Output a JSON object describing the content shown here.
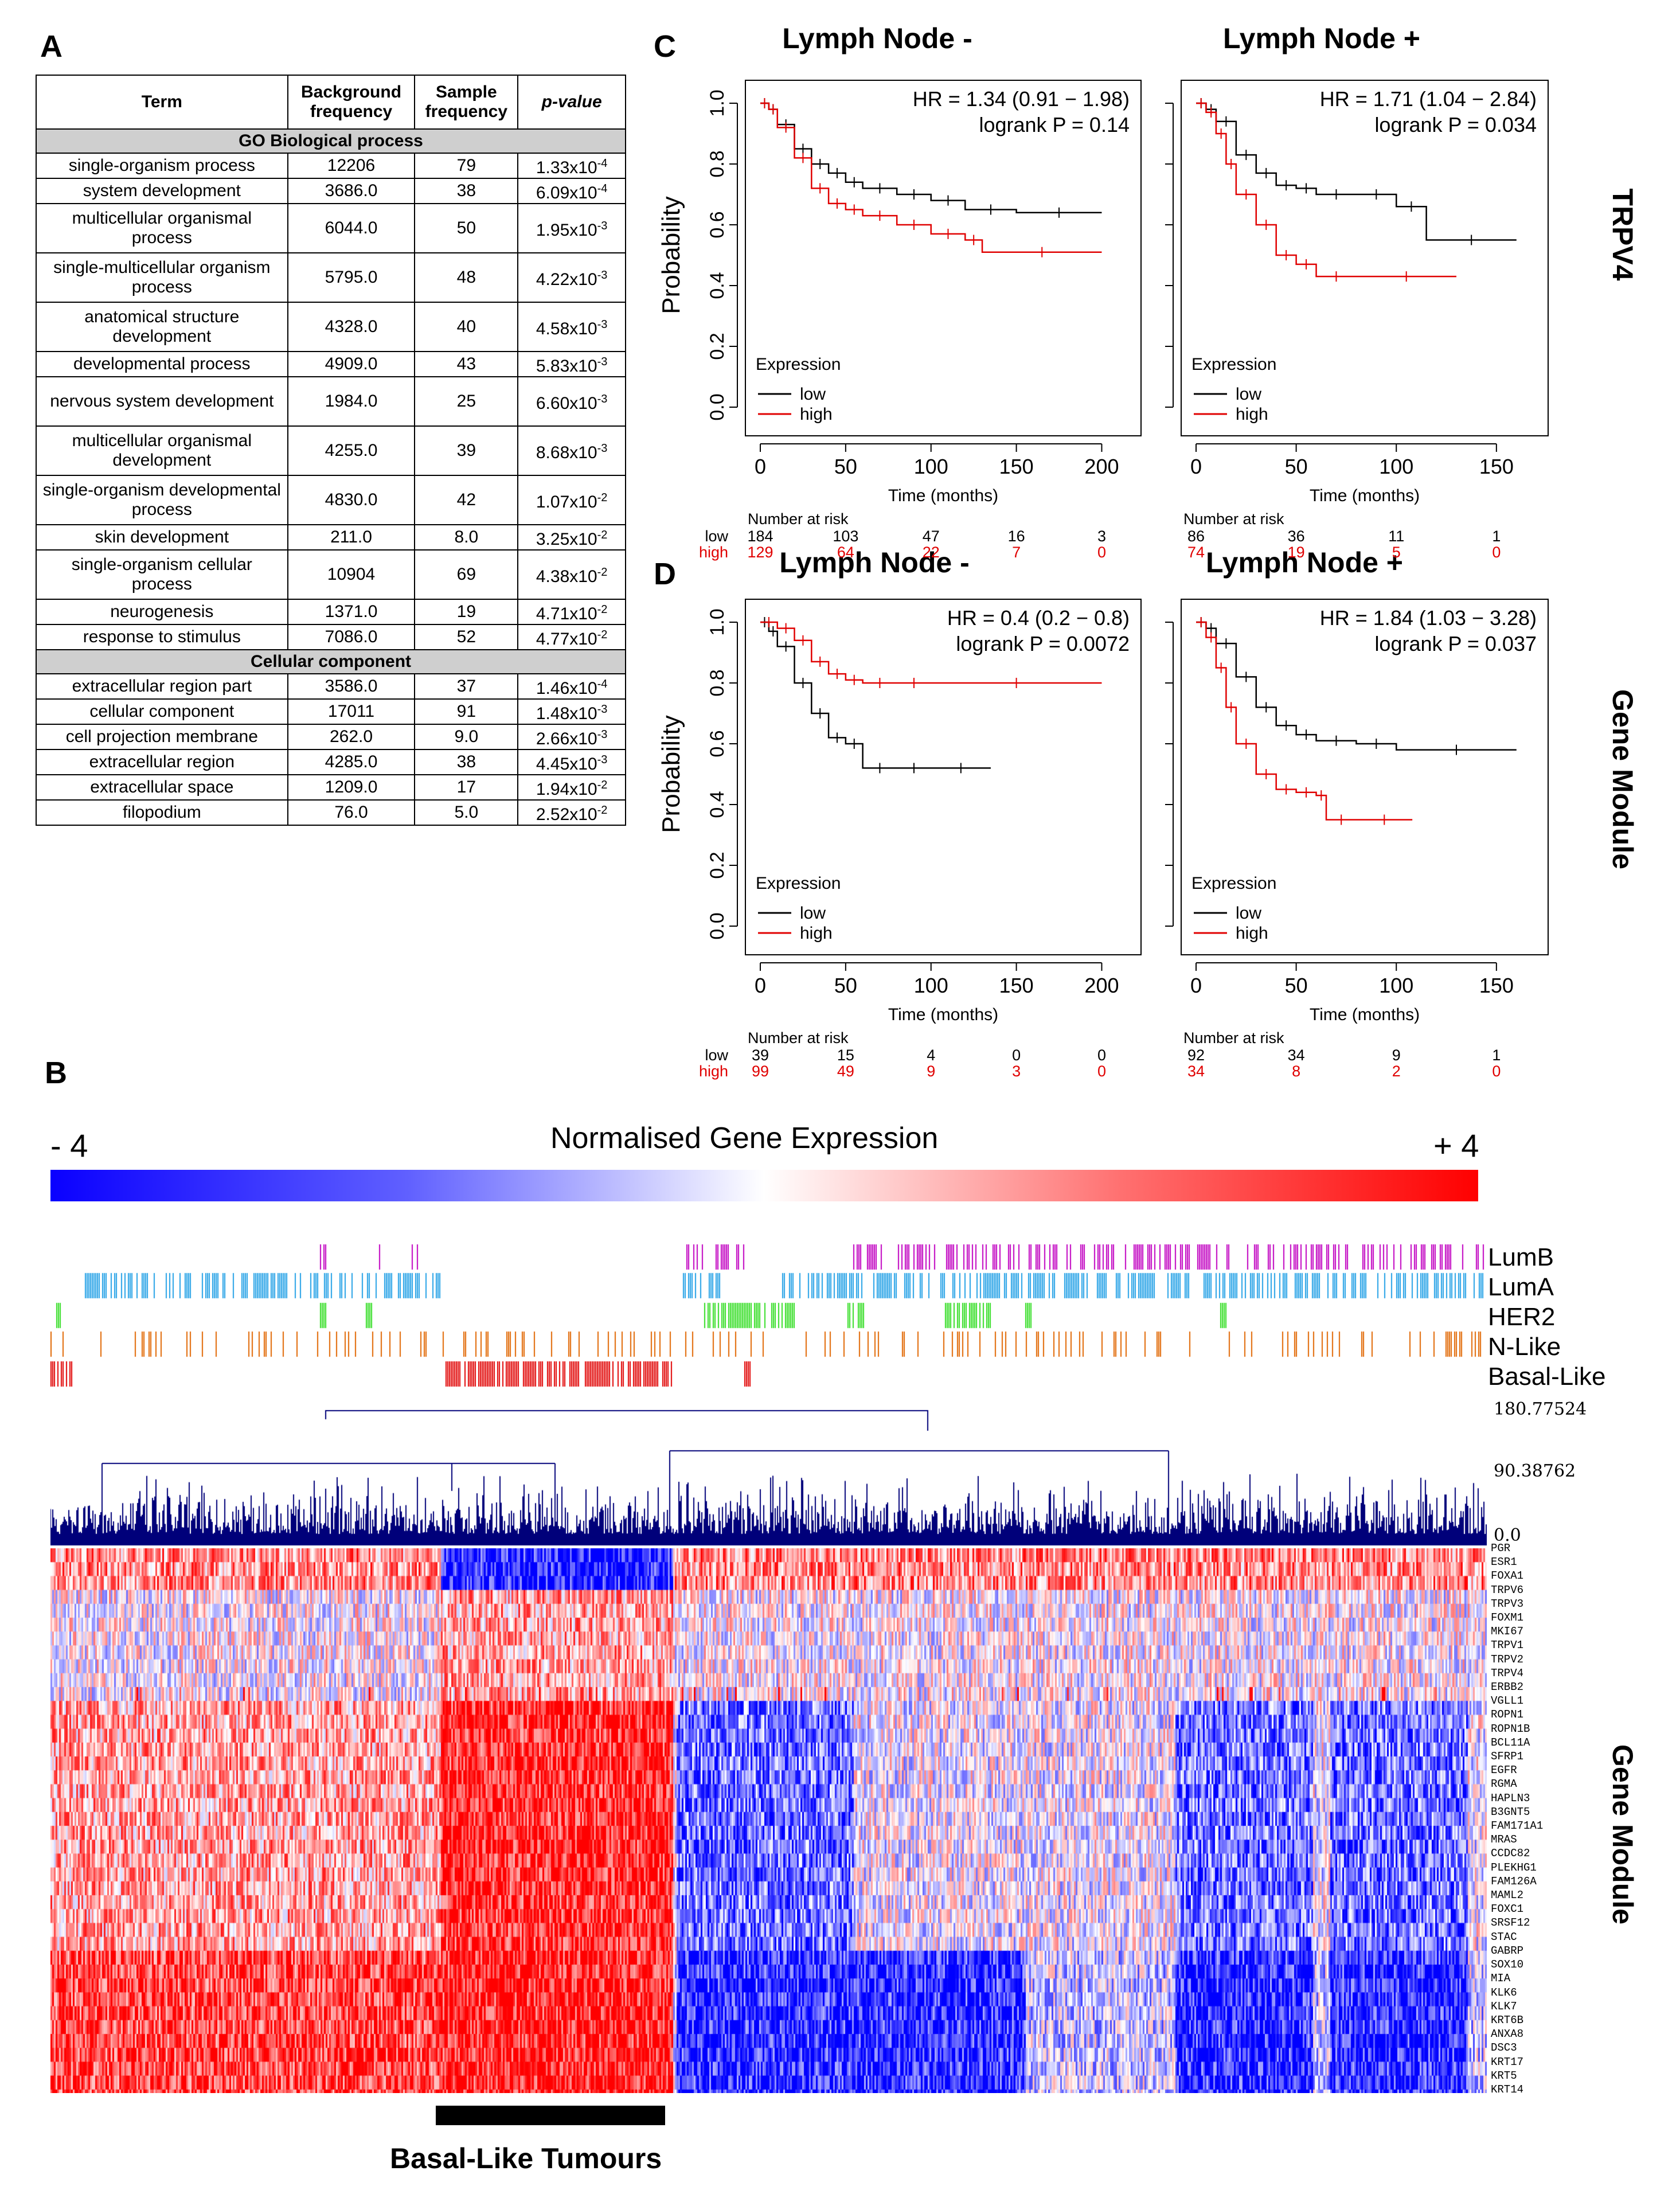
{
  "panels": {
    "A": "A",
    "B": "B",
    "C": "C",
    "D": "D"
  },
  "table": {
    "headers": [
      "Term",
      "Background frequency",
      "Sample frequency",
      "p-value"
    ],
    "sections": [
      {
        "title": "GO Biological process",
        "rows": [
          {
            "term": "single-organism process",
            "bg": "12206",
            "sample": "79",
            "p": "1.33x10",
            "exp": "-4",
            "tall": false
          },
          {
            "term": "system development",
            "bg": "3686.0",
            "sample": "38",
            "p": "6.09x10",
            "exp": "-4",
            "tall": false
          },
          {
            "term": "multicellular organismal process",
            "bg": "6044.0",
            "sample": "50",
            "p": "1.95x10",
            "exp": "-3",
            "tall": true
          },
          {
            "term": "single-multicellular organism process",
            "bg": "5795.0",
            "sample": "48",
            "p": "4.22x10",
            "exp": "-3",
            "tall": true
          },
          {
            "term": "anatomical structure development",
            "bg": "4328.0",
            "sample": "40",
            "p": "4.58x10",
            "exp": "-3",
            "tall": true
          },
          {
            "term": "developmental process",
            "bg": "4909.0",
            "sample": "43",
            "p": "5.83x10",
            "exp": "-3",
            "tall": false
          },
          {
            "term": "nervous system development",
            "bg": "1984.0",
            "sample": "25",
            "p": "6.60x10",
            "exp": "-3",
            "tall": true
          },
          {
            "term": "multicellular organismal development",
            "bg": "4255.0",
            "sample": "39",
            "p": "8.68x10",
            "exp": "-3",
            "tall": true
          },
          {
            "term": "single-organism developmental process",
            "bg": "4830.0",
            "sample": "42",
            "p": "1.07x10",
            "exp": "-2",
            "tall": true
          },
          {
            "term": "skin development",
            "bg": "211.0",
            "sample": "8.0",
            "p": "3.25x10",
            "exp": "-2",
            "tall": false
          },
          {
            "term": "single-organism cellular process",
            "bg": "10904",
            "sample": "69",
            "p": "4.38x10",
            "exp": "-2",
            "tall": true
          },
          {
            "term": "neurogenesis",
            "bg": "1371.0",
            "sample": "19",
            "p": "4.71x10",
            "exp": "-2",
            "tall": false
          },
          {
            "term": "response to stimulus",
            "bg": "7086.0",
            "sample": "52",
            "p": "4.77x10",
            "exp": "-2",
            "tall": false
          }
        ]
      },
      {
        "title": "Cellular component",
        "rows": [
          {
            "term": "extracellular region part",
            "bg": "3586.0",
            "sample": "37",
            "p": "1.46x10",
            "exp": "-4",
            "tall": false
          },
          {
            "term": "cellular component",
            "bg": "17011",
            "sample": "91",
            "p": "1.48x10",
            "exp": "-3",
            "tall": false
          },
          {
            "term": "cell projection membrane",
            "bg": "262.0",
            "sample": "9.0",
            "p": "2.66x10",
            "exp": "-3",
            "tall": false
          },
          {
            "term": "extracellular region",
            "bg": "4285.0",
            "sample": "38",
            "p": "4.45x10",
            "exp": "-3",
            "tall": false
          },
          {
            "term": "extracellular space",
            "bg": "1209.0",
            "sample": "17",
            "p": "1.94x10",
            "exp": "-2",
            "tall": false
          },
          {
            "term": "filopodium",
            "bg": "76.0",
            "sample": "5.0",
            "p": "2.52x10",
            "exp": "-2",
            "tall": false
          }
        ]
      }
    ]
  },
  "km": {
    "col_titles": [
      "Lymph Node -",
      "Lymph Node +",
      "Lymph Node -",
      "Lymph Node +"
    ],
    "row_labels": [
      "TRPV4",
      "Gene Module"
    ],
    "ylabel": "Probability",
    "xlabel": "Time (months)",
    "legend_title": "Expression",
    "legend_low": "low",
    "legend_high": "high",
    "risk_title": "Number at risk",
    "risk_low": "low",
    "risk_high": "high",
    "yticks": [
      "0.0",
      "0.2",
      "0.4",
      "0.6",
      "0.8",
      "1.0"
    ]
  },
  "chart_data": [
    {
      "type": "line",
      "id": "C-left",
      "title": "Lymph Node -",
      "hr": "HR = 1.34 (0.91 − 1.98)",
      "logrank": "logrank P = 0.14",
      "xlim": [
        0,
        210
      ],
      "ylim": [
        0,
        1.05
      ],
      "xticks": [
        0,
        50,
        100,
        150,
        200
      ],
      "series": [
        {
          "name": "low",
          "x": [
            0,
            5,
            10,
            20,
            30,
            40,
            50,
            60,
            80,
            100,
            120,
            150,
            200
          ],
          "y": [
            1,
            0.98,
            0.93,
            0.85,
            0.8,
            0.77,
            0.74,
            0.72,
            0.7,
            0.68,
            0.65,
            0.64,
            0.64
          ]
        },
        {
          "name": "high",
          "x": [
            0,
            5,
            10,
            20,
            30,
            40,
            50,
            60,
            80,
            100,
            120,
            130,
            200
          ],
          "y": [
            1,
            0.98,
            0.92,
            0.82,
            0.72,
            0.67,
            0.65,
            0.63,
            0.6,
            0.57,
            0.55,
            0.51,
            0.51
          ]
        }
      ],
      "risk_x": [
        0,
        50,
        100,
        150,
        200
      ],
      "risk_low": [
        "184",
        "103",
        "47",
        "16",
        "3"
      ],
      "risk_high": [
        "129",
        "64",
        "22",
        "7",
        "0"
      ]
    },
    {
      "type": "line",
      "id": "C-right",
      "title": "Lymph Node +",
      "hr": "HR = 1.71 (1.04 − 2.84)",
      "logrank": "logrank P = 0.034",
      "xlim": [
        0,
        165
      ],
      "ylim": [
        0,
        1.05
      ],
      "xticks": [
        0,
        50,
        100,
        150
      ],
      "series": [
        {
          "name": "low",
          "x": [
            0,
            5,
            10,
            20,
            30,
            40,
            50,
            60,
            80,
            100,
            115,
            160
          ],
          "y": [
            1,
            0.98,
            0.94,
            0.83,
            0.77,
            0.73,
            0.72,
            0.7,
            0.7,
            0.66,
            0.55,
            0.55
          ]
        },
        {
          "name": "high",
          "x": [
            0,
            5,
            10,
            15,
            20,
            30,
            40,
            50,
            60,
            80,
            130
          ],
          "y": [
            1,
            0.97,
            0.9,
            0.8,
            0.7,
            0.6,
            0.5,
            0.47,
            0.43,
            0.43,
            0.43
          ]
        }
      ],
      "risk_x": [
        0,
        50,
        100,
        150
      ],
      "risk_low": [
        "86",
        "36",
        "11",
        "1"
      ],
      "risk_high": [
        "74",
        "19",
        "5",
        "0"
      ]
    },
    {
      "type": "line",
      "id": "D-left",
      "title": "Lymph Node -",
      "hr": "HR = 0.4 (0.2 − 0.8)",
      "logrank": "logrank P = 0.0072",
      "xlim": [
        0,
        210
      ],
      "ylim": [
        0,
        1.05
      ],
      "xticks": [
        0,
        50,
        100,
        150,
        200
      ],
      "series": [
        {
          "name": "low",
          "x": [
            0,
            5,
            10,
            20,
            30,
            40,
            50,
            60,
            80,
            100,
            135
          ],
          "y": [
            1,
            0.97,
            0.92,
            0.8,
            0.7,
            0.62,
            0.6,
            0.52,
            0.52,
            0.52,
            0.52
          ]
        },
        {
          "name": "high",
          "x": [
            0,
            10,
            20,
            30,
            40,
            50,
            60,
            80,
            100,
            200
          ],
          "y": [
            1,
            0.98,
            0.94,
            0.87,
            0.83,
            0.81,
            0.8,
            0.8,
            0.8,
            0.8
          ]
        }
      ],
      "risk_x": [
        0,
        50,
        100,
        150,
        200
      ],
      "risk_low": [
        "39",
        "15",
        "4",
        "0",
        "0"
      ],
      "risk_high": [
        "99",
        "49",
        "9",
        "3",
        "0"
      ]
    },
    {
      "type": "line",
      "id": "D-right",
      "title": "Lymph Node +",
      "hr": "HR = 1.84 (1.03 − 3.28)",
      "logrank": "logrank P = 0.037",
      "xlim": [
        0,
        165
      ],
      "ylim": [
        0,
        1.05
      ],
      "xticks": [
        0,
        50,
        100,
        150
      ],
      "series": [
        {
          "name": "low",
          "x": [
            0,
            5,
            10,
            20,
            30,
            40,
            50,
            60,
            80,
            100,
            160
          ],
          "y": [
            1,
            0.98,
            0.93,
            0.82,
            0.72,
            0.66,
            0.63,
            0.61,
            0.6,
            0.58,
            0.58
          ]
        },
        {
          "name": "high",
          "x": [
            0,
            5,
            10,
            15,
            20,
            30,
            40,
            50,
            60,
            65,
            80,
            108
          ],
          "y": [
            1,
            0.95,
            0.85,
            0.72,
            0.6,
            0.5,
            0.45,
            0.44,
            0.43,
            0.35,
            0.35,
            0.35
          ]
        }
      ],
      "risk_x": [
        0,
        50,
        100,
        150
      ],
      "risk_low": [
        "92",
        "34",
        "9",
        "1"
      ],
      "risk_high": [
        "34",
        "8",
        "2",
        "0"
      ]
    }
  ],
  "heatmap": {
    "scale_title": "Normalised Gene Expression",
    "scale_min": "- 4",
    "scale_max": "+ 4",
    "colors": {
      "low": "#0000ff",
      "mid": "#ffffff",
      "high": "#ff0000",
      "dendro": "#00007a",
      "lumb": "#c000c0",
      "luma": "#22a0e6",
      "her2": "#33dd22",
      "nlike": "#e06600",
      "basal": "#e00000"
    },
    "subtypes": [
      "LumB",
      "LumA",
      "HER2",
      "N-Like",
      "Basal-Like"
    ],
    "dendro_ticks": [
      "180.77524",
      "90.38762",
      "0.0"
    ],
    "genes": [
      "PGR",
      "ESR1",
      "FOXA1",
      "TRPV6",
      "TRPV3",
      "FOXM1",
      "MKI67",
      "TRPV1",
      "TRPV2",
      "TRPV4",
      "ERBB2",
      "VGLL1",
      "ROPN1",
      "ROPN1B",
      "BCL11A",
      "SFRP1",
      "EGFR",
      "RGMA",
      "HAPLN3",
      "B3GNT5",
      "FAM171A1",
      "MRAS",
      "CCDC82",
      "PLEKHG1",
      "FAM126A",
      "MAML2",
      "FOXC1",
      "SRSF12",
      "STAC",
      "GABRP",
      "SOX10",
      "MIA",
      "KLK6",
      "KLK7",
      "KRT6B",
      "ANXA8",
      "DSC3",
      "KRT17",
      "KRT5",
      "KRT14"
    ],
    "side_label": "Gene Module",
    "bottom_label": "Basal-Like Tumours"
  }
}
